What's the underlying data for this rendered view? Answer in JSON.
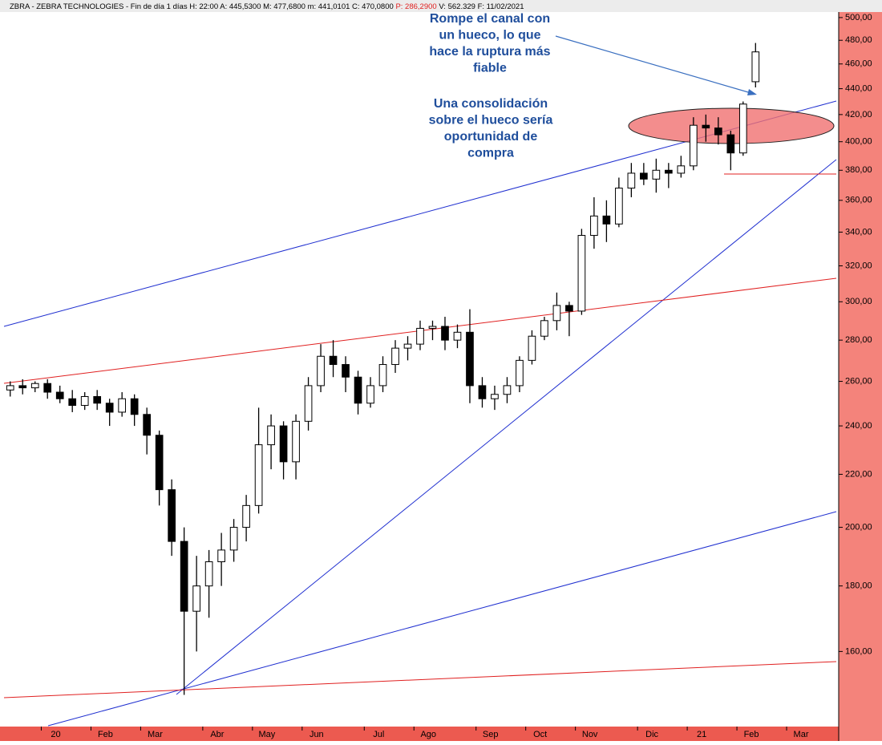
{
  "chart_data": {
    "type": "candlestick",
    "header": [
      "ZBRA - ZEBRA TECHNOLOGIES - Fin de día 1 días H: 22:00 A: 445,5300 M: 477,6800 m: 441,0101 C: 470,0800 ",
      "P: 286,2900",
      " V: 562.329 F: 11/02/2021"
    ],
    "annotations": [
      [
        "Rompe el canal con",
        "un hueco, lo que",
        "hace la ruptura más",
        "fiable"
      ],
      [
        "Una consolidación",
        "sobre el hueco sería",
        "oportunidad de",
        "compra"
      ]
    ],
    "categories": [
      null,
      null,
      null,
      "20",
      null,
      null,
      null,
      "Feb",
      null,
      null,
      null,
      "Mar",
      null,
      null,
      null,
      null,
      "Abr",
      null,
      null,
      null,
      "May",
      null,
      null,
      null,
      "Jun",
      null,
      null,
      null,
      null,
      "Jul",
      null,
      null,
      null,
      "Ago",
      null,
      null,
      null,
      null,
      "Sep",
      null,
      null,
      null,
      "Oct",
      null,
      null,
      null,
      "Nov",
      null,
      null,
      null,
      null,
      "Dic",
      null,
      null,
      null,
      "21",
      null,
      null,
      null,
      "Feb",
      null,
      null,
      null,
      "Mar",
      null,
      null,
      null
    ],
    "open": [
      256,
      258,
      257,
      259,
      255,
      252,
      249,
      253,
      250,
      246,
      252,
      245,
      236,
      214,
      195,
      172,
      180,
      188,
      192,
      200,
      208,
      232,
      240,
      225,
      242,
      258,
      272,
      268,
      262,
      250,
      258,
      268,
      276,
      278,
      286,
      287,
      280,
      284,
      258,
      252,
      254,
      258,
      270,
      282,
      290,
      298,
      295,
      338,
      350,
      345,
      368,
      378,
      374,
      380,
      378,
      383,
      412,
      410,
      405,
      392,
      445.53,
      null,
      null,
      null,
      null,
      null,
      null
    ],
    "high": [
      260,
      261,
      260,
      261,
      258,
      256,
      255,
      256,
      252,
      255,
      254,
      248,
      238,
      218,
      200,
      190,
      192,
      198,
      203,
      212,
      248,
      245,
      242,
      245,
      262,
      278,
      280,
      272,
      265,
      262,
      272,
      280,
      282,
      290,
      290,
      292,
      288,
      296,
      262,
      258,
      262,
      272,
      285,
      292,
      305,
      300,
      342,
      362,
      360,
      375,
      385,
      385,
      388,
      385,
      390,
      418,
      420,
      418,
      408,
      430,
      477.68,
      null,
      null,
      null,
      null,
      null,
      null
    ],
    "low": [
      253,
      254,
      255,
      252,
      250,
      246,
      247,
      247,
      240,
      244,
      240,
      228,
      208,
      190,
      148,
      160,
      170,
      180,
      188,
      195,
      205,
      222,
      218,
      218,
      238,
      255,
      262,
      255,
      245,
      248,
      255,
      264,
      270,
      275,
      280,
      275,
      276,
      250,
      248,
      247,
      250,
      255,
      268,
      280,
      285,
      282,
      293,
      330,
      334,
      343,
      362,
      370,
      365,
      368,
      375,
      380,
      400,
      398,
      380,
      390,
      441.01,
      null,
      null,
      null,
      null,
      null,
      null
    ],
    "close": [
      258,
      257,
      259,
      255,
      252,
      249,
      253,
      250,
      246,
      252,
      245,
      236,
      214,
      195,
      172,
      180,
      188,
      192,
      200,
      208,
      232,
      240,
      225,
      242,
      258,
      272,
      268,
      262,
      250,
      258,
      268,
      276,
      278,
      286,
      287,
      280,
      284,
      258,
      252,
      254,
      258,
      270,
      282,
      290,
      298,
      295,
      338,
      350,
      345,
      368,
      378,
      374,
      380,
      378,
      383,
      412,
      410,
      405,
      392,
      428,
      470.08,
      null,
      null,
      null,
      null,
      null,
      null
    ],
    "ylim": [
      140,
      505
    ],
    "log_scale": true,
    "yticks": [
      {
        "value": 160,
        "label": "160,00"
      },
      {
        "value": 180,
        "label": "180,00"
      },
      {
        "value": 200,
        "label": "200,00"
      },
      {
        "value": 220,
        "label": "220,00"
      },
      {
        "value": 240,
        "label": "240,00"
      },
      {
        "value": 260,
        "label": "260,00"
      },
      {
        "value": 280,
        "label": "280,00"
      },
      {
        "value": 300,
        "label": "300,00"
      },
      {
        "value": 320,
        "label": "320,00"
      },
      {
        "value": 340,
        "label": "340,00"
      },
      {
        "value": 360,
        "label": "360,00"
      },
      {
        "value": 380,
        "label": "380,00"
      },
      {
        "value": 400,
        "label": "400,00"
      },
      {
        "value": 420,
        "label": "420,00"
      },
      {
        "value": 440,
        "label": "440,00"
      },
      {
        "value": 460,
        "label": "460,00"
      },
      {
        "value": 480,
        "label": "480,00"
      },
      {
        "value": 500,
        "label": "500,00"
      }
    ],
    "color": "#000000"
  }
}
